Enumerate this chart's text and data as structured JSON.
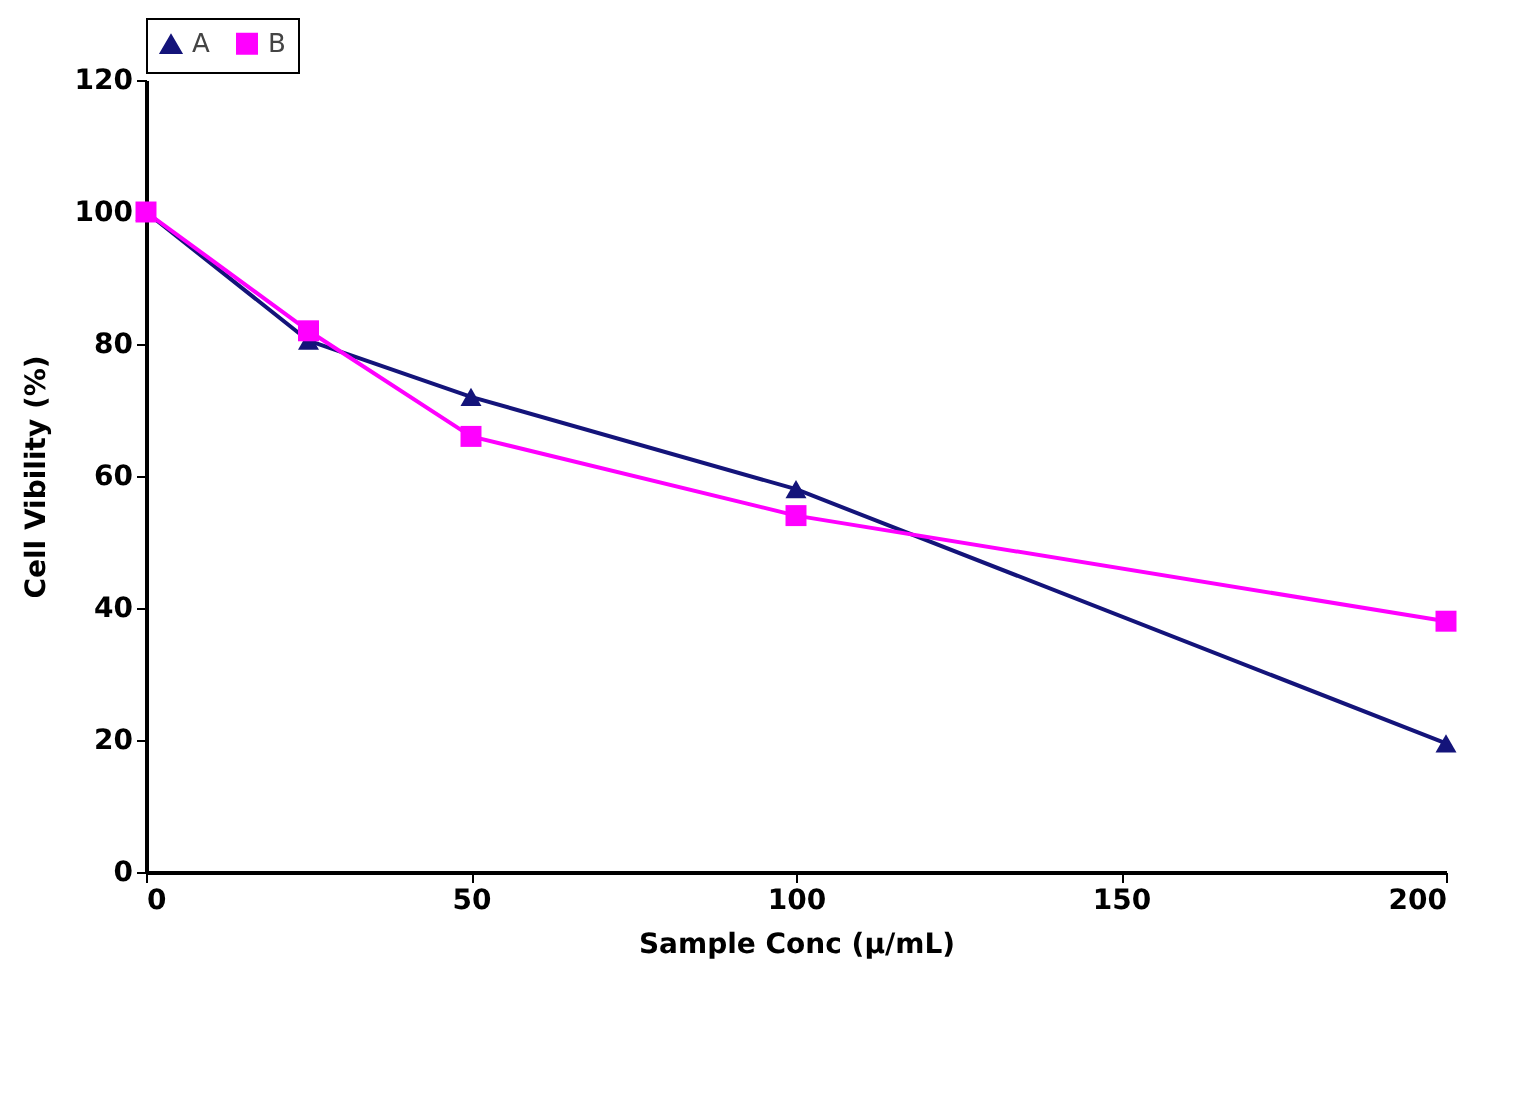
{
  "chart_data": {
    "type": "line",
    "xlabel": "Sample Conc (µ/mL)",
    "ylabel": "Cell Vibility (%)",
    "x": [
      0,
      25,
      50,
      100,
      200
    ],
    "series": [
      {
        "name": "A",
        "color": "#14147a",
        "marker": "triangle",
        "values": [
          100,
          80.5,
          72,
          58,
          19.5
        ]
      },
      {
        "name": "B",
        "color": "#ff00ff",
        "marker": "square",
        "values": [
          100,
          82,
          66,
          54,
          38
        ]
      }
    ],
    "xlim": [
      0,
      200
    ],
    "xticks": [
      0,
      50,
      100,
      150,
      200
    ],
    "ylim": [
      0,
      120
    ],
    "yticks": [
      0,
      20,
      40,
      60,
      80,
      100,
      120
    ],
    "grid": false,
    "legend": "top left",
    "line_style": "solid"
  }
}
